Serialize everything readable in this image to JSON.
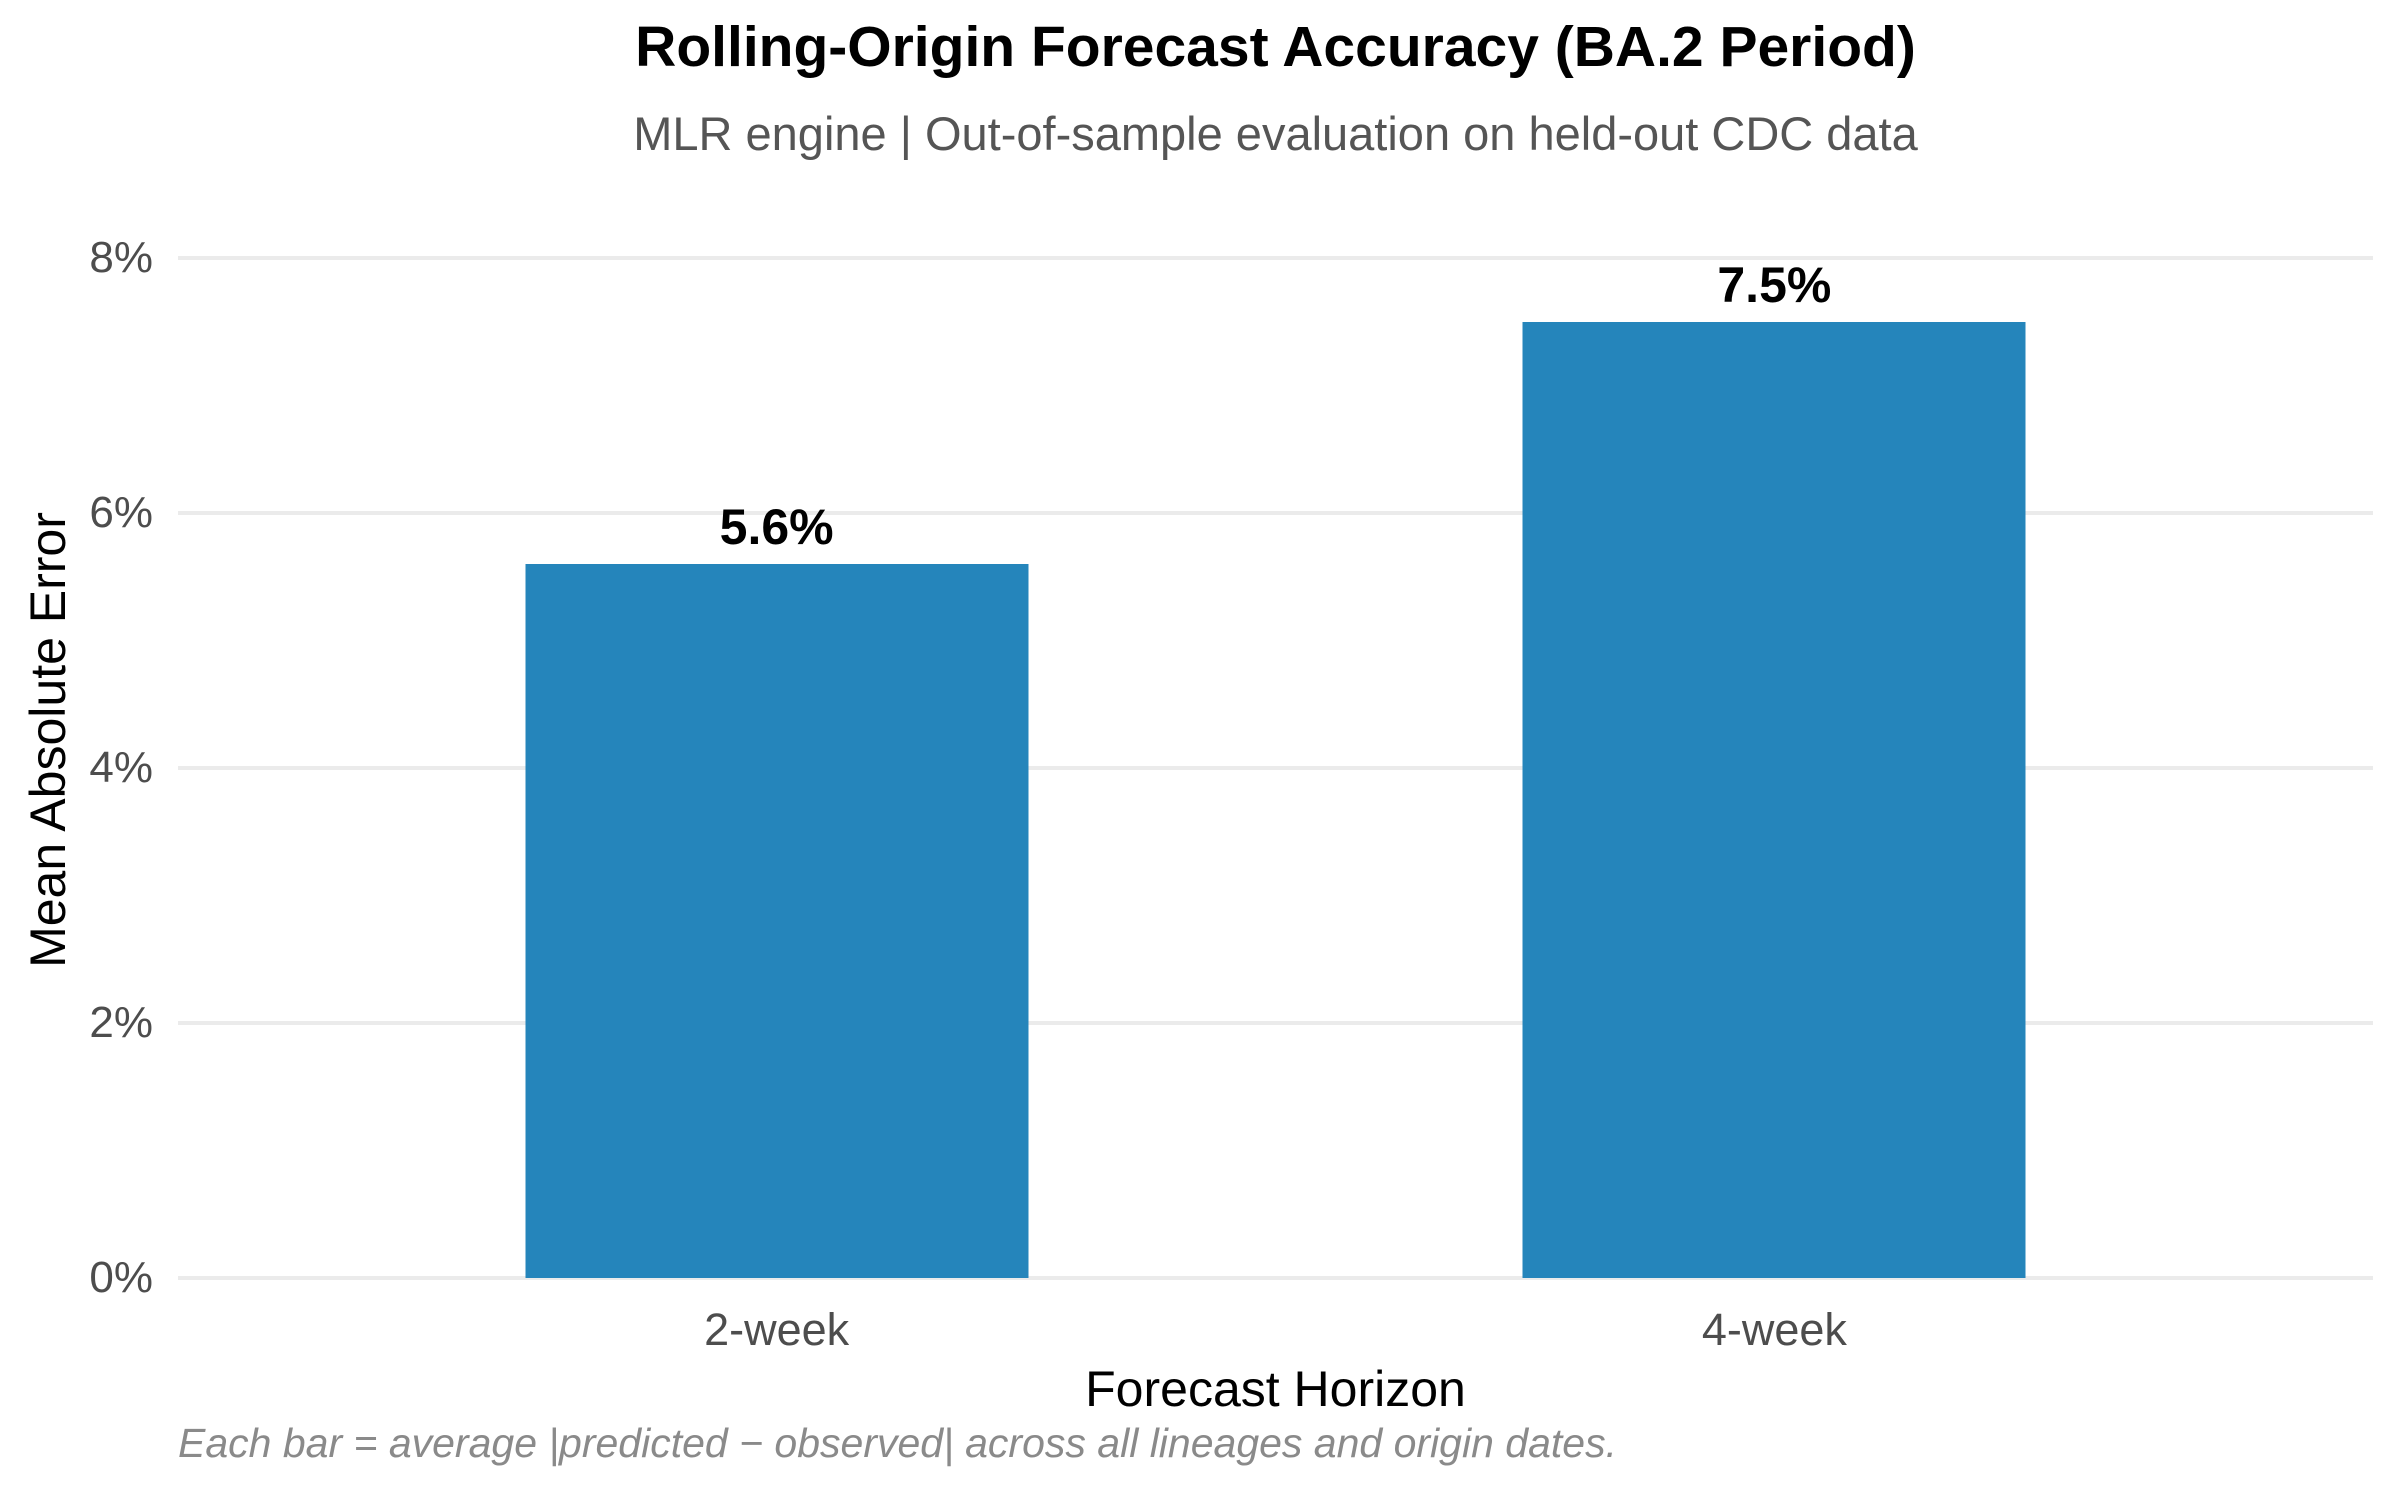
{
  "colors": {
    "bar": "#2585bb",
    "gridline": "#ebebeb",
    "tick_label": "#4d4d4d",
    "subtitle": "#555555",
    "footnote": "#8a8a8a",
    "title": "#000000",
    "axis_label": "#000000",
    "background": "#ffffff"
  },
  "chart_data": {
    "type": "bar",
    "title": "Rolling-Origin Forecast Accuracy (BA.2 Period)",
    "subtitle": "MLR engine | Out-of-sample evaluation on held-out CDC data",
    "xlabel": "Forecast Horizon",
    "ylabel": "Mean Absolute Error",
    "categories": [
      "2-week",
      "4-week"
    ],
    "values": [
      5.6,
      7.5
    ],
    "value_labels": [
      "5.6%",
      "7.5%"
    ],
    "ylim": [
      0,
      8
    ],
    "ytick_values": [
      0,
      2,
      4,
      6,
      8
    ],
    "yticks": [
      "0%",
      "2%",
      "4%",
      "6%",
      "8%"
    ],
    "grid": "horizontal",
    "legend": "none",
    "annotation": "Each bar = average |predicted − observed| across all lineages and origin dates."
  }
}
